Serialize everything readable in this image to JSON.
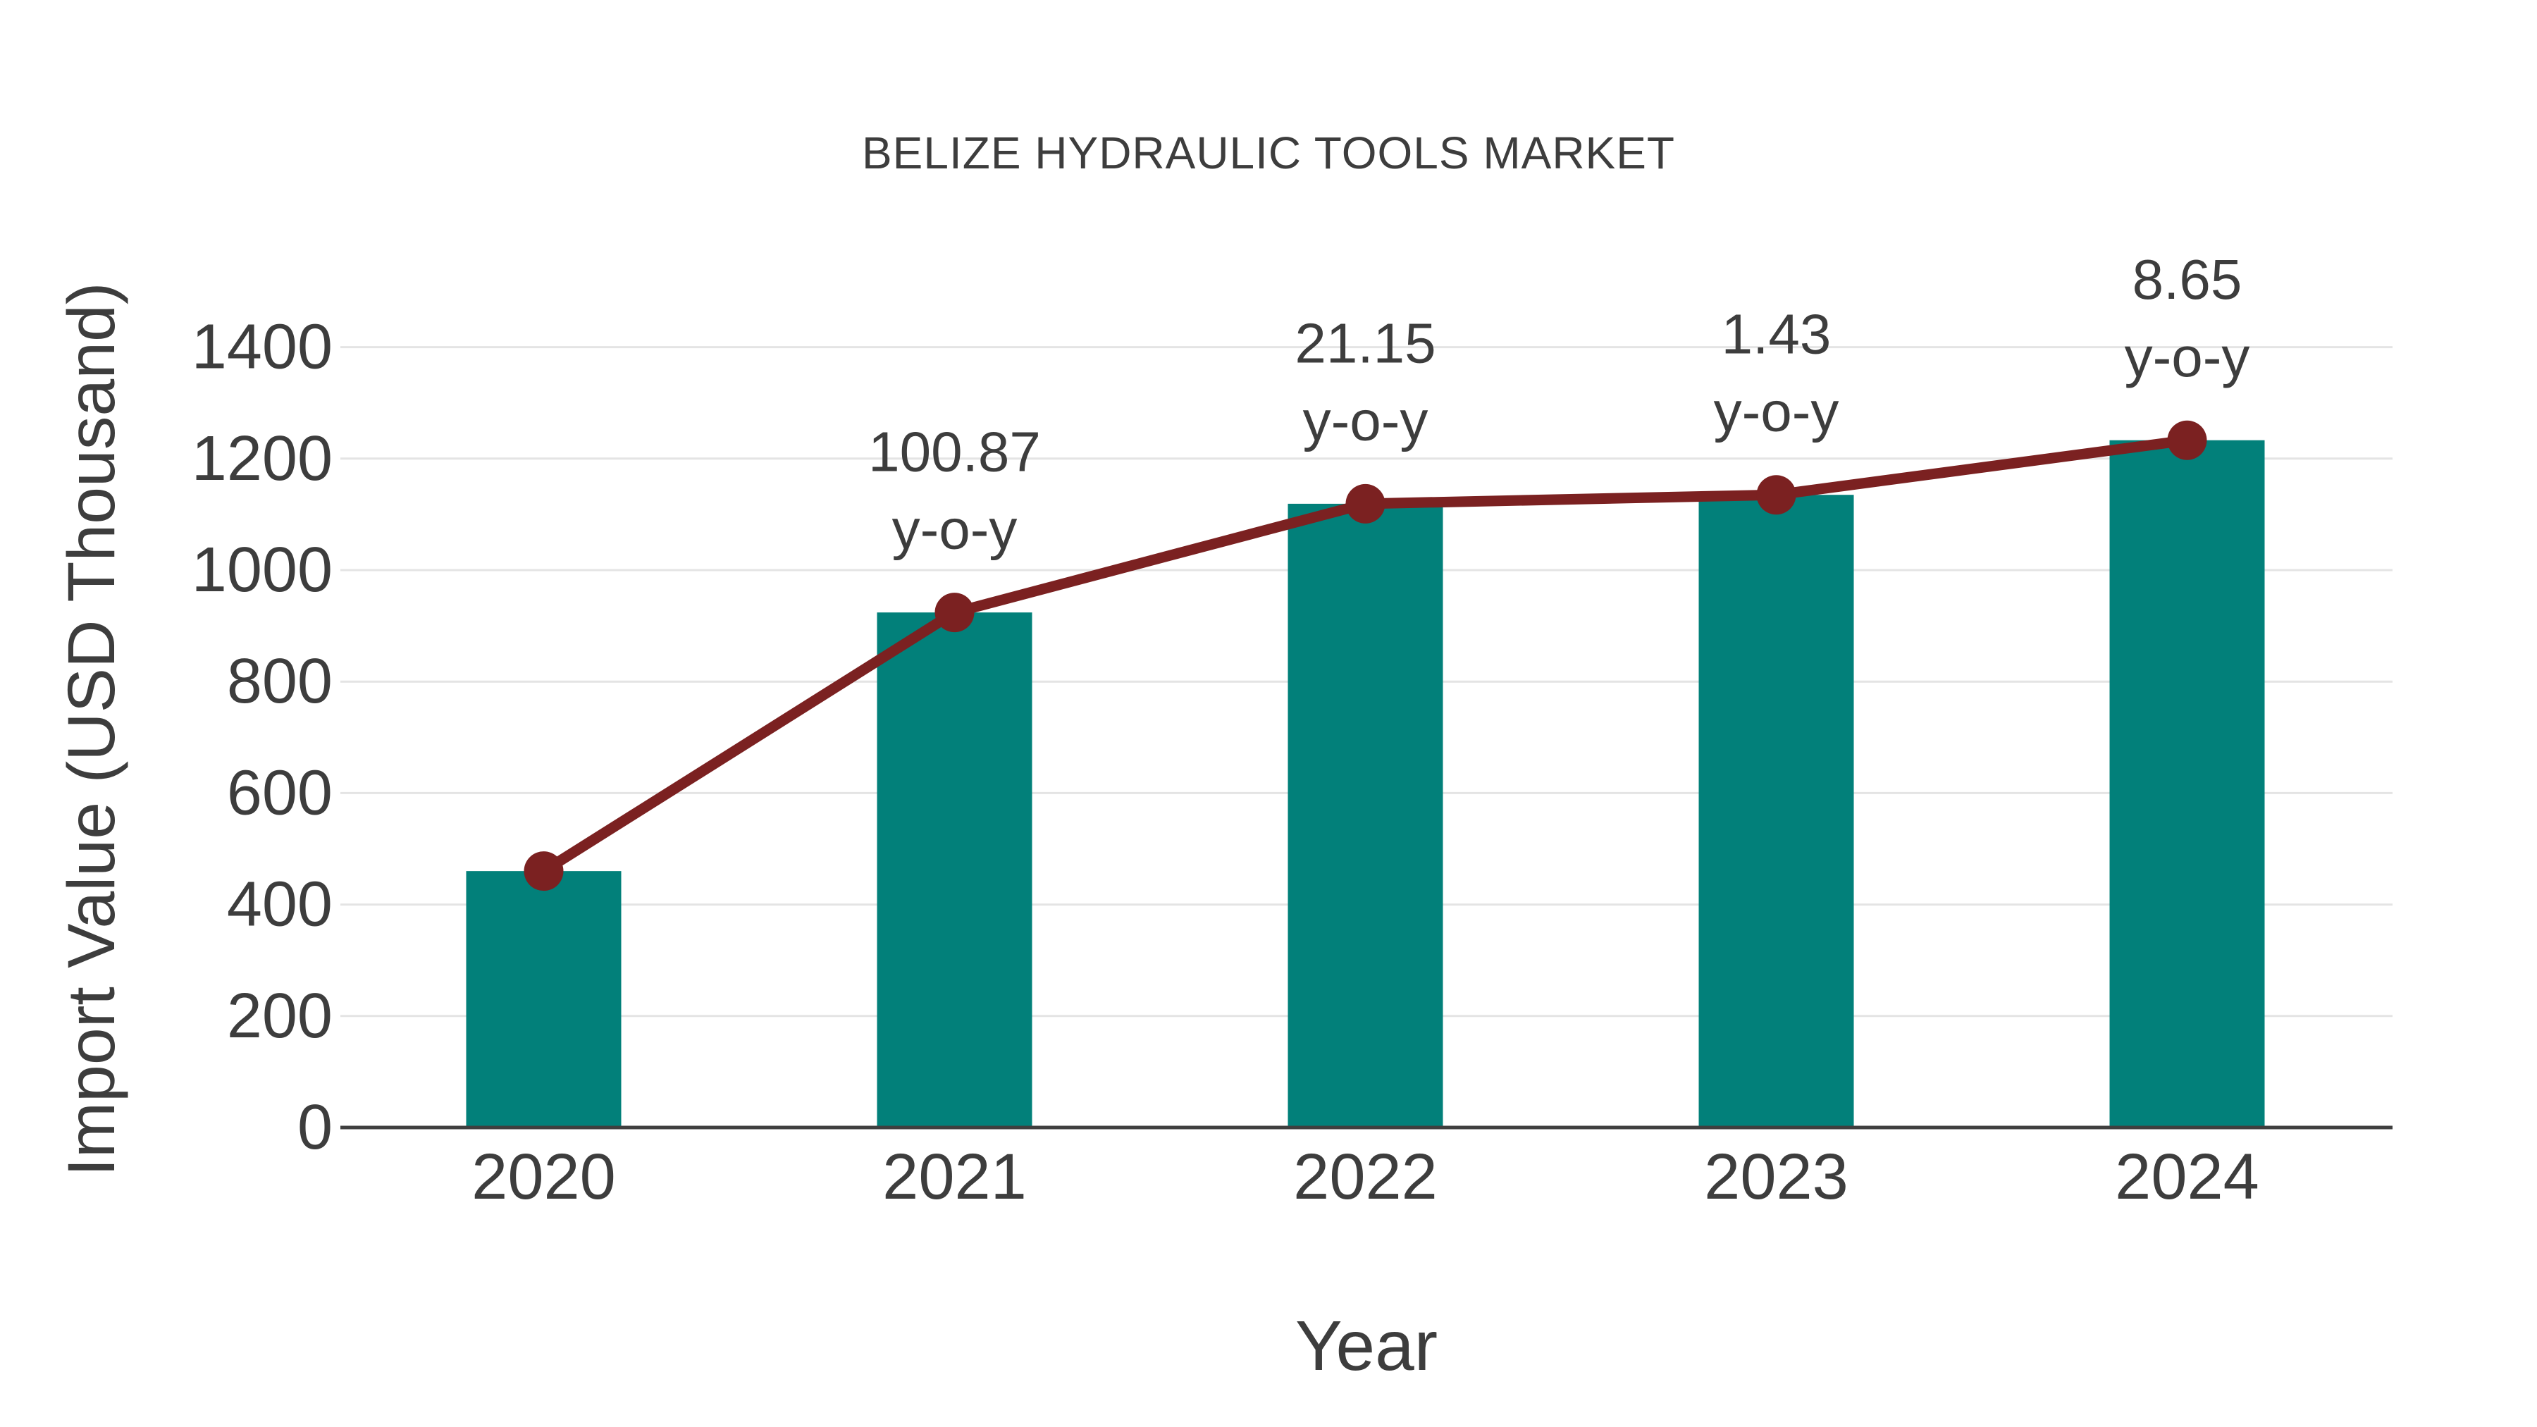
{
  "chart_data": {
    "type": "bar",
    "title": "BELIZE HYDRAULIC TOOLS MARKET",
    "xlabel": "Year",
    "ylabel": "Import Value (USD Thousand)",
    "categories": [
      "2020",
      "2021",
      "2022",
      "2023",
      "2024"
    ],
    "series": [
      {
        "name": "import-value-bars",
        "type": "bar",
        "color": "#02807A",
        "values": [
          460,
          924,
          1119,
          1135,
          1233
        ]
      },
      {
        "name": "yoy-trend-line",
        "type": "line",
        "color": "#7B2121",
        "values": [
          460,
          924,
          1119,
          1135,
          1233
        ]
      }
    ],
    "annotations": [
      {
        "category": "2021",
        "value_label": "100.87",
        "suffix_label": "y-o-y"
      },
      {
        "category": "2022",
        "value_label": "21.15",
        "suffix_label": "y-o-y"
      },
      {
        "category": "2023",
        "value_label": "1.43",
        "suffix_label": "y-o-y"
      },
      {
        "category": "2024",
        "value_label": "8.65",
        "suffix_label": "y-o-y"
      }
    ],
    "y_ticks": [
      0,
      200,
      400,
      600,
      800,
      1000,
      1200,
      1400
    ],
    "ylim": [
      0,
      1400
    ],
    "grid": true,
    "legend_visible": false
  },
  "colors": {
    "bar": "#02807A",
    "line": "#7B2121",
    "marker": "#7B2121",
    "grid": "#E4E4E4",
    "axis_line": "#3F3F3F",
    "text": "#3D3D3D",
    "background": "#FFFFFF"
  }
}
